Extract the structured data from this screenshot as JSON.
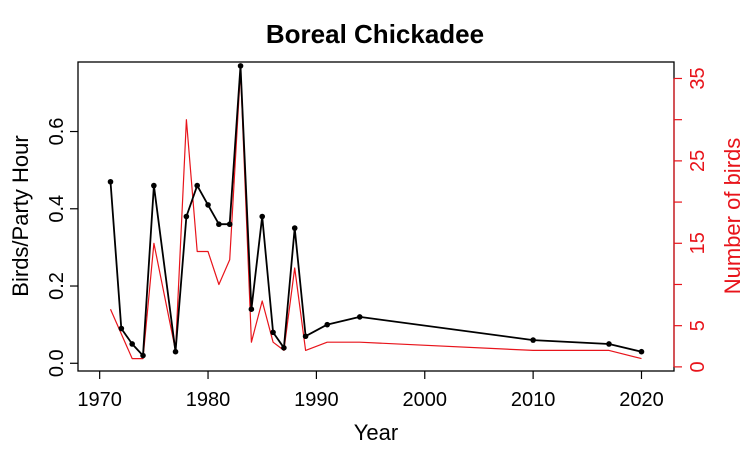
{
  "chart_data": {
    "type": "line",
    "title": "Boreal Chickadee",
    "xlabel": "Year",
    "ylabel": "Birds/Party Hour",
    "y2label": "Number of birds",
    "xlim": [
      1968,
      2023
    ],
    "ylim": [
      -0.02,
      0.78
    ],
    "y2lim": [
      -0.5,
      37
    ],
    "xticks": [
      1970,
      1980,
      1990,
      2000,
      2010,
      2020
    ],
    "yticks": [
      0.0,
      0.2,
      0.4,
      0.6
    ],
    "y2ticks": [
      0,
      5,
      15,
      25,
      35
    ],
    "grid": false,
    "colors": {
      "primary": "#000000",
      "secondary": "#e8141b"
    },
    "series": [
      {
        "axis": "left",
        "color": "#000000",
        "markers": true,
        "x": [
          1971,
          1972,
          1973,
          1974,
          1975,
          1977,
          1978,
          1979,
          1980,
          1981,
          1982,
          1983,
          1984,
          1985,
          1986,
          1987,
          1988,
          1989,
          1991,
          1994,
          2010,
          2017,
          2020
        ],
        "y": [
          0.47,
          0.09,
          0.05,
          0.02,
          0.46,
          0.03,
          0.38,
          0.46,
          0.41,
          0.36,
          0.36,
          0.77,
          0.14,
          0.38,
          0.08,
          0.04,
          0.35,
          0.07,
          0.1,
          0.12,
          0.06,
          0.05,
          0.03
        ]
      },
      {
        "axis": "right",
        "color": "#e8141b",
        "markers": false,
        "x": [
          1971,
          1972,
          1973,
          1974,
          1975,
          1977,
          1978,
          1979,
          1980,
          1981,
          1982,
          1983,
          1984,
          1985,
          1986,
          1987,
          1988,
          1989,
          1991,
          1994,
          2010,
          2017,
          2020
        ],
        "y": [
          7,
          4,
          1,
          1,
          15,
          2,
          30,
          14,
          14,
          10,
          13,
          36,
          3,
          8,
          3,
          2,
          12,
          2,
          3,
          3,
          2,
          2,
          1
        ]
      }
    ]
  }
}
